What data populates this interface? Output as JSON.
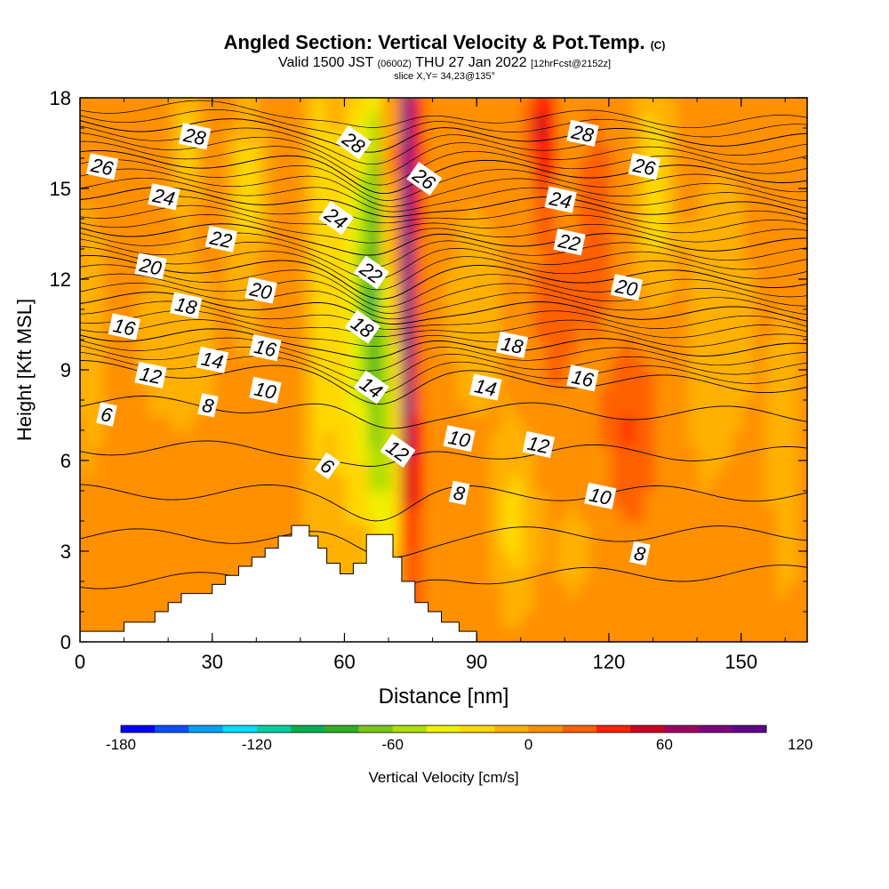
{
  "header": {
    "title": "Angled Section: Vertical Velocity & Pot.Temp.",
    "title_tag": "(C)",
    "valid_prefix": "Valid 1500 JST",
    "valid_utc": "(0600Z)",
    "valid_date": "THU 27 Jan 2022",
    "forecast": "[12hrFcst@2152z]",
    "slice": "slice X,Y= 34,23@135°"
  },
  "chart_data": {
    "type": "heatmap",
    "xlabel": "Distance [nm]",
    "ylabel": "Height [Kft MSL]",
    "xlim": [
      0,
      165
    ],
    "ylim": [
      0,
      18
    ],
    "x_ticks": [
      0,
      30,
      60,
      90,
      120,
      150
    ],
    "y_ticks": [
      0,
      3,
      6,
      9,
      12,
      15,
      18
    ],
    "colorbar": {
      "label": "Vertical Velocity [cm/s]",
      "min": -180,
      "max": 150,
      "step": 15,
      "tick_values": [
        -180,
        -120,
        -60,
        0,
        60,
        120
      ],
      "colors": [
        "#0000ff",
        "#0a50ff",
        "#00a0ff",
        "#00e0ff",
        "#00d0a0",
        "#00b050",
        "#30b020",
        "#78c818",
        "#b0e000",
        "#f0f000",
        "#ffd800",
        "#ffb000",
        "#ff9000",
        "#ff6000",
        "#ff2000",
        "#d00020",
        "#a00060",
        "#800080",
        "#600090"
      ]
    },
    "terrain": [
      [
        0,
        0.35
      ],
      [
        10,
        0.35
      ],
      [
        10,
        0.65
      ],
      [
        17,
        0.65
      ],
      [
        17,
        1.0
      ],
      [
        20,
        1.0
      ],
      [
        20,
        1.3
      ],
      [
        23,
        1.3
      ],
      [
        23,
        1.6
      ],
      [
        30,
        1.6
      ],
      [
        30,
        1.9
      ],
      [
        33,
        1.9
      ],
      [
        33,
        2.2
      ],
      [
        36,
        2.2
      ],
      [
        36,
        2.5
      ],
      [
        39,
        2.5
      ],
      [
        39,
        2.8
      ],
      [
        42,
        2.8
      ],
      [
        42,
        3.1
      ],
      [
        45,
        3.1
      ],
      [
        45,
        3.5
      ],
      [
        48,
        3.5
      ],
      [
        48,
        3.85
      ],
      [
        52,
        3.85
      ],
      [
        52,
        3.5
      ],
      [
        54,
        3.5
      ],
      [
        54,
        3.1
      ],
      [
        56,
        3.1
      ],
      [
        56,
        2.6
      ],
      [
        59,
        2.6
      ],
      [
        59,
        2.25
      ],
      [
        62,
        2.25
      ],
      [
        62,
        2.6
      ],
      [
        65,
        2.6
      ],
      [
        65,
        3.55
      ],
      [
        71,
        3.55
      ],
      [
        71,
        2.8
      ],
      [
        73,
        2.8
      ],
      [
        73,
        2.0
      ],
      [
        76,
        2.0
      ],
      [
        76,
        1.3
      ],
      [
        79,
        1.3
      ],
      [
        79,
        1.0
      ],
      [
        82,
        1.0
      ],
      [
        82,
        0.65
      ],
      [
        86,
        0.65
      ],
      [
        86,
        0.35
      ],
      [
        90,
        0.35
      ]
    ],
    "theta_contours": [
      4,
      6,
      8,
      10,
      12,
      14,
      16,
      18,
      20,
      22,
      24,
      26,
      28
    ],
    "theta_labels": [
      {
        "text": "26",
        "x": 5,
        "y": 15.7
      },
      {
        "text": "28",
        "x": 26,
        "y": 16.7
      },
      {
        "text": "24",
        "x": 19,
        "y": 14.7
      },
      {
        "text": "22",
        "x": 32,
        "y": 13.3
      },
      {
        "text": "20",
        "x": 16,
        "y": 12.4
      },
      {
        "text": "20",
        "x": 41,
        "y": 11.6
      },
      {
        "text": "18",
        "x": 24,
        "y": 11.1
      },
      {
        "text": "16",
        "x": 10,
        "y": 10.4
      },
      {
        "text": "16",
        "x": 42,
        "y": 9.7
      },
      {
        "text": "14",
        "x": 30,
        "y": 9.3
      },
      {
        "text": "12",
        "x": 16,
        "y": 8.8
      },
      {
        "text": "10",
        "x": 42,
        "y": 8.3
      },
      {
        "text": "8",
        "x": 29,
        "y": 7.8
      },
      {
        "text": "6",
        "x": 6,
        "y": 7.5
      },
      {
        "text": "28",
        "x": 62,
        "y": 16.5
      },
      {
        "text": "26",
        "x": 78,
        "y": 15.3
      },
      {
        "text": "24",
        "x": 58,
        "y": 14.0
      },
      {
        "text": "22",
        "x": 66,
        "y": 12.2
      },
      {
        "text": "18",
        "x": 64,
        "y": 10.4
      },
      {
        "text": "14",
        "x": 66,
        "y": 8.4
      },
      {
        "text": "12",
        "x": 72,
        "y": 6.3
      },
      {
        "text": "6",
        "x": 56,
        "y": 5.8
      },
      {
        "text": "28",
        "x": 114,
        "y": 16.8
      },
      {
        "text": "26",
        "x": 128,
        "y": 15.7
      },
      {
        "text": "24",
        "x": 109,
        "y": 14.6
      },
      {
        "text": "22",
        "x": 111,
        "y": 13.2
      },
      {
        "text": "20",
        "x": 124,
        "y": 11.7
      },
      {
        "text": "18",
        "x": 98,
        "y": 9.8
      },
      {
        "text": "16",
        "x": 114,
        "y": 8.7
      },
      {
        "text": "14",
        "x": 92,
        "y": 8.4
      },
      {
        "text": "10",
        "x": 86,
        "y": 6.7
      },
      {
        "text": "12",
        "x": 104,
        "y": 6.5
      },
      {
        "text": "10",
        "x": 118,
        "y": 4.8
      },
      {
        "text": "8",
        "x": 86,
        "y": 4.9
      },
      {
        "text": "8",
        "x": 127,
        "y": 2.9
      }
    ]
  }
}
